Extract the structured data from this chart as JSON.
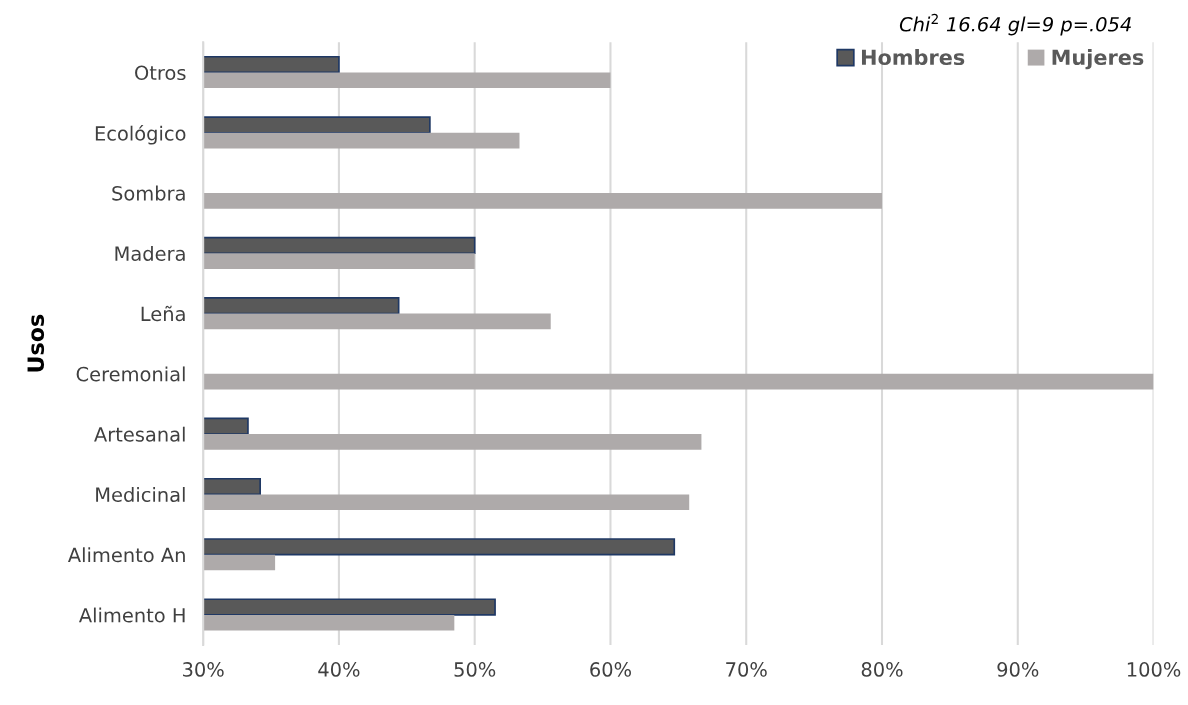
{
  "chart_data": {
    "type": "bar",
    "orientation": "horizontal",
    "ylabel": "Usos",
    "categories": [
      "Otros",
      "Ecológico",
      "Sombra",
      "Madera",
      "Leña",
      "Ceremonial",
      "Artesanal",
      "Medicinal",
      "Alimento An",
      "Alimento H"
    ],
    "series": [
      {
        "name": "Hombres",
        "color": "#595959",
        "values": [
          40.0,
          46.7,
          null,
          50.0,
          44.4,
          null,
          33.3,
          34.2,
          64.7,
          51.5
        ]
      },
      {
        "name": "Mujeres",
        "color": "#aeaaaa",
        "values": [
          60.0,
          53.3,
          80.0,
          50.0,
          55.6,
          100.0,
          66.7,
          65.8,
          35.3,
          48.5
        ]
      }
    ],
    "xlim": [
      30,
      100
    ],
    "xticks": [
      {
        "value": 30,
        "label": "30%"
      },
      {
        "value": 40,
        "label": "40%"
      },
      {
        "value": 50,
        "label": "50%"
      },
      {
        "value": 60,
        "label": "60%"
      },
      {
        "value": 70,
        "label": "70%"
      },
      {
        "value": 80,
        "label": "80%"
      },
      {
        "value": 90,
        "label": "90%"
      },
      {
        "value": 100,
        "label": "100%"
      }
    ],
    "grid": "x",
    "legend": "top right",
    "annotations": [
      "Chi$^{2}$ 16.64 gl=9 p=.054"
    ]
  }
}
